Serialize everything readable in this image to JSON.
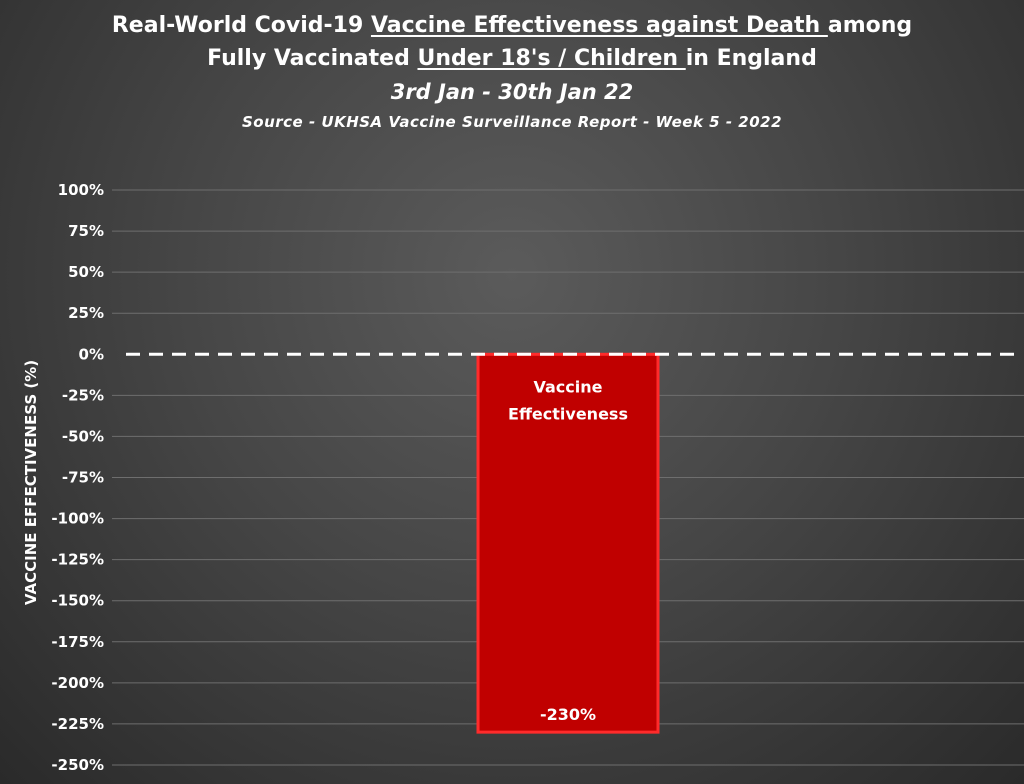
{
  "chart_data": {
    "type": "bar",
    "title": {
      "line1_pre": "Real-World Covid-19 ",
      "line1_u": "Vaccine Effectiveness against Death ",
      "line1_post": "among",
      "line2_pre": "Fully Vaccinated ",
      "line2_u": "Under 18's / Children ",
      "line2_post": "in England"
    },
    "subtitle": "3rd Jan - 30th Jan 22",
    "source": "Source - UKHSA Vaccine Surveillance Report - Week 5 - 2022",
    "ylabel": "VACCINE EFFECTIVENESS (%)",
    "ylim": [
      -250,
      100
    ],
    "yticks": [
      100,
      75,
      50,
      25,
      0,
      -25,
      -50,
      -75,
      -100,
      -125,
      -150,
      -175,
      -200,
      -225,
      -250
    ],
    "ytick_labels": [
      "100%",
      "75%",
      "50%",
      "25%",
      "0%",
      "-25%",
      "-50%",
      "-75%",
      "-100%",
      "-125%",
      "-150%",
      "-175%",
      "-200%",
      "-225%",
      "-250%"
    ],
    "grid": true,
    "reference_line": {
      "y": 0,
      "style": "dashed",
      "color": "#ffffff"
    },
    "series": [
      {
        "categories": [
          "Vaccine Effectiveness"
        ],
        "label_lines": [
          "Vaccine",
          "Effectiveness"
        ],
        "values": [
          -230
        ],
        "value_labels": [
          "-230%"
        ],
        "color": "#c00000",
        "border_color": "#ff2b2b"
      }
    ]
  }
}
